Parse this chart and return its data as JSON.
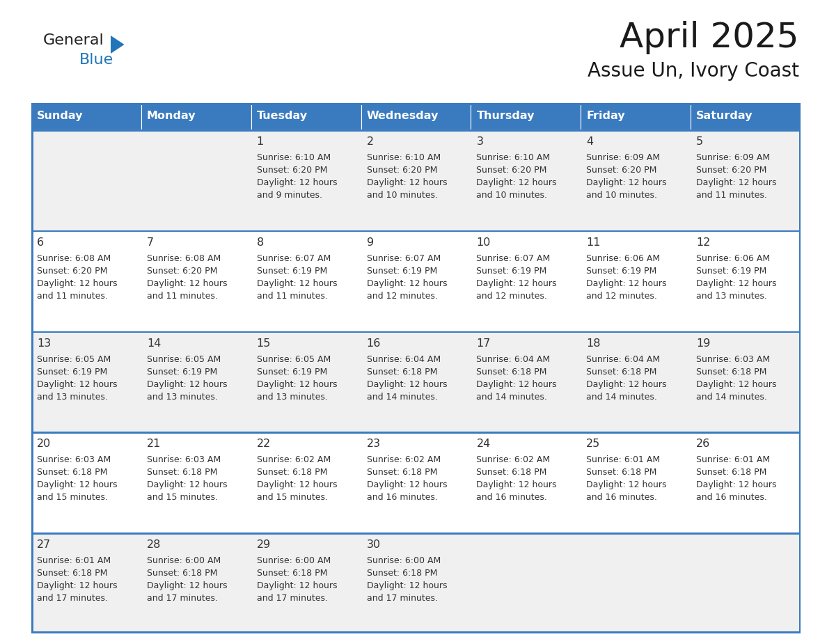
{
  "title": "April 2025",
  "subtitle": "Assue Un, Ivory Coast",
  "days_of_week": [
    "Sunday",
    "Monday",
    "Tuesday",
    "Wednesday",
    "Thursday",
    "Friday",
    "Saturday"
  ],
  "header_bg": "#3a7bbf",
  "header_text": "#ffffff",
  "row_bg_odd": "#f0f0f0",
  "row_bg_even": "#ffffff",
  "separator_color": "#3a7bbf",
  "text_color": "#333333",
  "logo_text_color": "#222222",
  "logo_blue_color": "#2275b8",
  "logo_triangle_color": "#2275b8",
  "calendar_data": [
    [
      {
        "day": "",
        "info": ""
      },
      {
        "day": "",
        "info": ""
      },
      {
        "day": "1",
        "info": "Sunrise: 6:10 AM\nSunset: 6:20 PM\nDaylight: 12 hours\nand 9 minutes."
      },
      {
        "day": "2",
        "info": "Sunrise: 6:10 AM\nSunset: 6:20 PM\nDaylight: 12 hours\nand 10 minutes."
      },
      {
        "day": "3",
        "info": "Sunrise: 6:10 AM\nSunset: 6:20 PM\nDaylight: 12 hours\nand 10 minutes."
      },
      {
        "day": "4",
        "info": "Sunrise: 6:09 AM\nSunset: 6:20 PM\nDaylight: 12 hours\nand 10 minutes."
      },
      {
        "day": "5",
        "info": "Sunrise: 6:09 AM\nSunset: 6:20 PM\nDaylight: 12 hours\nand 11 minutes."
      }
    ],
    [
      {
        "day": "6",
        "info": "Sunrise: 6:08 AM\nSunset: 6:20 PM\nDaylight: 12 hours\nand 11 minutes."
      },
      {
        "day": "7",
        "info": "Sunrise: 6:08 AM\nSunset: 6:20 PM\nDaylight: 12 hours\nand 11 minutes."
      },
      {
        "day": "8",
        "info": "Sunrise: 6:07 AM\nSunset: 6:19 PM\nDaylight: 12 hours\nand 11 minutes."
      },
      {
        "day": "9",
        "info": "Sunrise: 6:07 AM\nSunset: 6:19 PM\nDaylight: 12 hours\nand 12 minutes."
      },
      {
        "day": "10",
        "info": "Sunrise: 6:07 AM\nSunset: 6:19 PM\nDaylight: 12 hours\nand 12 minutes."
      },
      {
        "day": "11",
        "info": "Sunrise: 6:06 AM\nSunset: 6:19 PM\nDaylight: 12 hours\nand 12 minutes."
      },
      {
        "day": "12",
        "info": "Sunrise: 6:06 AM\nSunset: 6:19 PM\nDaylight: 12 hours\nand 13 minutes."
      }
    ],
    [
      {
        "day": "13",
        "info": "Sunrise: 6:05 AM\nSunset: 6:19 PM\nDaylight: 12 hours\nand 13 minutes."
      },
      {
        "day": "14",
        "info": "Sunrise: 6:05 AM\nSunset: 6:19 PM\nDaylight: 12 hours\nand 13 minutes."
      },
      {
        "day": "15",
        "info": "Sunrise: 6:05 AM\nSunset: 6:19 PM\nDaylight: 12 hours\nand 13 minutes."
      },
      {
        "day": "16",
        "info": "Sunrise: 6:04 AM\nSunset: 6:18 PM\nDaylight: 12 hours\nand 14 minutes."
      },
      {
        "day": "17",
        "info": "Sunrise: 6:04 AM\nSunset: 6:18 PM\nDaylight: 12 hours\nand 14 minutes."
      },
      {
        "day": "18",
        "info": "Sunrise: 6:04 AM\nSunset: 6:18 PM\nDaylight: 12 hours\nand 14 minutes."
      },
      {
        "day": "19",
        "info": "Sunrise: 6:03 AM\nSunset: 6:18 PM\nDaylight: 12 hours\nand 14 minutes."
      }
    ],
    [
      {
        "day": "20",
        "info": "Sunrise: 6:03 AM\nSunset: 6:18 PM\nDaylight: 12 hours\nand 15 minutes."
      },
      {
        "day": "21",
        "info": "Sunrise: 6:03 AM\nSunset: 6:18 PM\nDaylight: 12 hours\nand 15 minutes."
      },
      {
        "day": "22",
        "info": "Sunrise: 6:02 AM\nSunset: 6:18 PM\nDaylight: 12 hours\nand 15 minutes."
      },
      {
        "day": "23",
        "info": "Sunrise: 6:02 AM\nSunset: 6:18 PM\nDaylight: 12 hours\nand 16 minutes."
      },
      {
        "day": "24",
        "info": "Sunrise: 6:02 AM\nSunset: 6:18 PM\nDaylight: 12 hours\nand 16 minutes."
      },
      {
        "day": "25",
        "info": "Sunrise: 6:01 AM\nSunset: 6:18 PM\nDaylight: 12 hours\nand 16 minutes."
      },
      {
        "day": "26",
        "info": "Sunrise: 6:01 AM\nSunset: 6:18 PM\nDaylight: 12 hours\nand 16 minutes."
      }
    ],
    [
      {
        "day": "27",
        "info": "Sunrise: 6:01 AM\nSunset: 6:18 PM\nDaylight: 12 hours\nand 17 minutes."
      },
      {
        "day": "28",
        "info": "Sunrise: 6:00 AM\nSunset: 6:18 PM\nDaylight: 12 hours\nand 17 minutes."
      },
      {
        "day": "29",
        "info": "Sunrise: 6:00 AM\nSunset: 6:18 PM\nDaylight: 12 hours\nand 17 minutes."
      },
      {
        "day": "30",
        "info": "Sunrise: 6:00 AM\nSunset: 6:18 PM\nDaylight: 12 hours\nand 17 minutes."
      },
      {
        "day": "",
        "info": ""
      },
      {
        "day": "",
        "info": ""
      },
      {
        "day": "",
        "info": ""
      }
    ]
  ]
}
